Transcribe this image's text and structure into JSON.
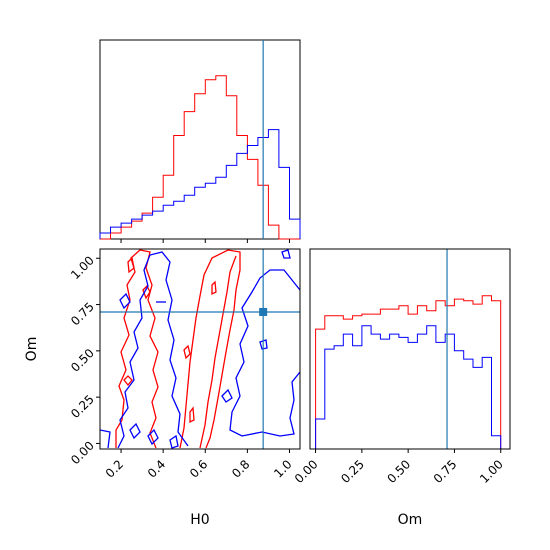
{
  "chart_data": [
    {
      "type": "histogram",
      "panel": "H0 marginal",
      "xlim": [
        0.1,
        1.05
      ],
      "bins": [
        0.1,
        0.15,
        0.2,
        0.25,
        0.3,
        0.35,
        0.4,
        0.45,
        0.5,
        0.55,
        0.6,
        0.65,
        0.7,
        0.75,
        0.8,
        0.85,
        0.9,
        0.95,
        1.0,
        1.05
      ],
      "series": [
        {
          "color": "#ff0000",
          "values": [
            0,
            0.03,
            0.06,
            0.09,
            0.13,
            0.21,
            0.32,
            0.52,
            0.64,
            0.73,
            0.8,
            0.82,
            0.72,
            0.52,
            0.4,
            0.27,
            0.07,
            0,
            0
          ]
        },
        {
          "color": "#0000ff",
          "values": [
            0.03,
            0.06,
            0.08,
            0.1,
            0.12,
            0.14,
            0.17,
            0.19,
            0.22,
            0.26,
            0.28,
            0.31,
            0.37,
            0.43,
            0.47,
            0.51,
            0.55,
            0.36,
            0.1
          ]
        }
      ],
      "truth": {
        "x": 0.875,
        "color": "#1f77b4"
      }
    },
    {
      "type": "contour",
      "panel": "H0 vs Om joint",
      "xlabel": "H0",
      "ylabel": "Om",
      "xlim": [
        0.1,
        1.05
      ],
      "ylim": [
        -0.03,
        1.05
      ],
      "xticks": [
        "0.2",
        "0.4",
        "0.6",
        "0.8",
        "1.0"
      ],
      "yticks": [
        "0.00",
        "0.25",
        "0.50",
        "0.75",
        "1.00"
      ],
      "series": [
        {
          "color": "#ff0000",
          "levels": 2
        },
        {
          "color": "#0000ff",
          "levels": 2
        }
      ],
      "truth": {
        "x": 0.875,
        "y": 0.71,
        "color": "#1f77b4"
      }
    },
    {
      "type": "histogram",
      "panel": "Om marginal",
      "xlabel": "Om",
      "xlim": [
        -0.03,
        1.05
      ],
      "xticks": [
        "0.00",
        "0.25",
        "0.50",
        "0.75",
        "1.00"
      ],
      "bins": [
        0.0,
        0.05,
        0.1,
        0.15,
        0.2,
        0.25,
        0.3,
        0.35,
        0.4,
        0.45,
        0.5,
        0.55,
        0.6,
        0.65,
        0.7,
        0.75,
        0.8,
        0.85,
        0.9,
        0.95,
        1.0
      ],
      "series": [
        {
          "color": "#ff0000",
          "values": [
            0.72,
            0.8,
            0.8,
            0.78,
            0.8,
            0.81,
            0.81,
            0.84,
            0.84,
            0.86,
            0.81,
            0.86,
            0.83,
            0.89,
            0.86,
            0.9,
            0.89,
            0.87,
            0.92,
            0.89
          ]
        },
        {
          "color": "#0000ff",
          "values": [
            0.18,
            0.6,
            0.62,
            0.69,
            0.62,
            0.74,
            0.69,
            0.66,
            0.69,
            0.67,
            0.64,
            0.69,
            0.74,
            0.64,
            0.69,
            0.59,
            0.54,
            0.49,
            0.55,
            0.08
          ]
        }
      ],
      "truth": {
        "x": 0.71,
        "color": "#1f77b4"
      }
    }
  ]
}
